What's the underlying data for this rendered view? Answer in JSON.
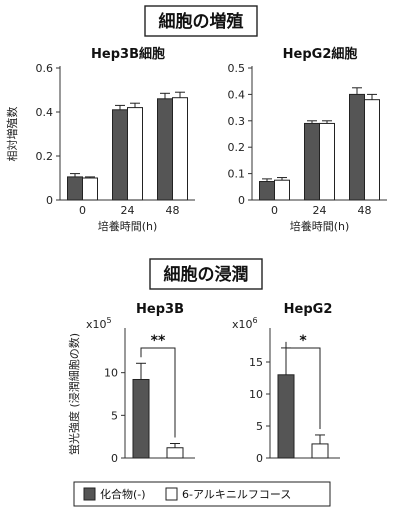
{
  "sections": {
    "proliferation_title": "細胞の増殖",
    "invasion_title": "細胞の浸潤"
  },
  "legend": {
    "items": [
      {
        "label": "化合物(-)",
        "color": "#555555"
      },
      {
        "label": "6-アルキニルフコース",
        "color": "#ffffff"
      }
    ]
  },
  "chart_data": [
    {
      "type": "bar",
      "title": "Hep3B細胞",
      "ylabel": "相対増殖数",
      "xlabel": "培養時間(h)",
      "categories": [
        "0",
        "24",
        "48"
      ],
      "ylim": [
        0,
        0.6
      ],
      "yticks": [
        "0",
        "0.2",
        "0.4",
        "0.6"
      ],
      "series": [
        {
          "name": "化合物(-)",
          "values": [
            0.105,
            0.41,
            0.46
          ],
          "errors": [
            0.015,
            0.02,
            0.025
          ]
        },
        {
          "name": "6-アルキニルフコース",
          "values": [
            0.1,
            0.42,
            0.465
          ],
          "errors": [
            0.005,
            0.02,
            0.025
          ]
        }
      ]
    },
    {
      "type": "bar",
      "title": "HepG2細胞",
      "ylabel": "",
      "xlabel": "培養時間(h)",
      "categories": [
        "0",
        "24",
        "48"
      ],
      "ylim": [
        0,
        0.5
      ],
      "yticks": [
        "0",
        "0.1",
        "0.2",
        "0.3",
        "0.4",
        "0.5"
      ],
      "series": [
        {
          "name": "化合物(-)",
          "values": [
            0.07,
            0.29,
            0.4
          ],
          "errors": [
            0.01,
            0.01,
            0.025
          ]
        },
        {
          "name": "6-アルキニルフコース",
          "values": [
            0.075,
            0.29,
            0.38
          ],
          "errors": [
            0.01,
            0.01,
            0.02
          ]
        }
      ]
    },
    {
      "type": "bar",
      "title": "Hep3B",
      "ylabel": "蛍光強度 (浸潤細胞の数)",
      "xlabel": "",
      "multiplier_base": "x10",
      "multiplier_exp": "5",
      "categories": [
        ""
      ],
      "ylim": [
        0,
        15
      ],
      "yticks": [
        "0",
        "5",
        "10"
      ],
      "significance": "**",
      "series": [
        {
          "name": "化合物(-)",
          "values": [
            9.2
          ],
          "errors": [
            1.9
          ]
        },
        {
          "name": "6-アルキニルフコース",
          "values": [
            1.2
          ],
          "errors": [
            0.5
          ]
        }
      ]
    },
    {
      "type": "bar",
      "title": "HepG2",
      "ylabel": "",
      "xlabel": "",
      "multiplier_base": "x10",
      "multiplier_exp": "6",
      "categories": [
        ""
      ],
      "ylim": [
        0,
        20
      ],
      "yticks": [
        "0",
        "5",
        "10",
        "15"
      ],
      "significance": "*",
      "series": [
        {
          "name": "化合物(-)",
          "values": [
            13
          ],
          "errors": [
            4.2
          ]
        },
        {
          "name": "6-アルキニルフコース",
          "values": [
            2.2
          ],
          "errors": [
            1.4
          ]
        }
      ]
    }
  ]
}
